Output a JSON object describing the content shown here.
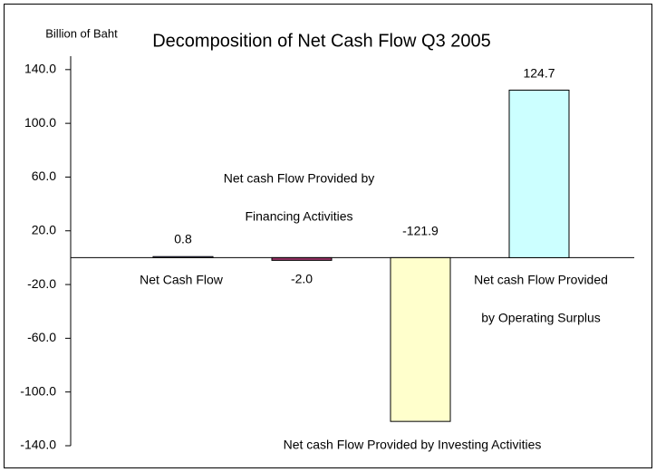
{
  "chart_data": {
    "type": "bar",
    "title": "Decomposition of Net Cash Flow Q3 2005",
    "y_label": "Billion of Baht",
    "categories": [
      [
        "Net Cash Flow"
      ],
      [
        "Net cash Flow Provided by",
        "Financing Activities"
      ],
      [
        "Net cash Flow Provided by Investing Activities"
      ],
      [
        "Net cash Flow Provided",
        "by Operating Surplus"
      ]
    ],
    "values": [
      0.8,
      -2.0,
      -121.9,
      124.7
    ],
    "value_labels": [
      "0.8",
      "-2.0",
      "-121.9",
      "124.7"
    ],
    "colors": [
      "#9999ff",
      "#993366",
      "#ffffcc",
      "#ccffff"
    ],
    "ylim": [
      -140,
      150
    ],
    "yticks": [
      {
        "value": 140,
        "label": "140.0"
      },
      {
        "value": 100,
        "label": "100.0"
      },
      {
        "value": 60,
        "label": "60.0"
      },
      {
        "value": 20,
        "label": "20.0"
      },
      {
        "value": -20,
        "label": "-20.0"
      },
      {
        "value": -60,
        "label": "-60.0"
      },
      {
        "value": -100,
        "label": "-100.0"
      },
      {
        "value": -140,
        "label": "-140.0"
      }
    ]
  }
}
